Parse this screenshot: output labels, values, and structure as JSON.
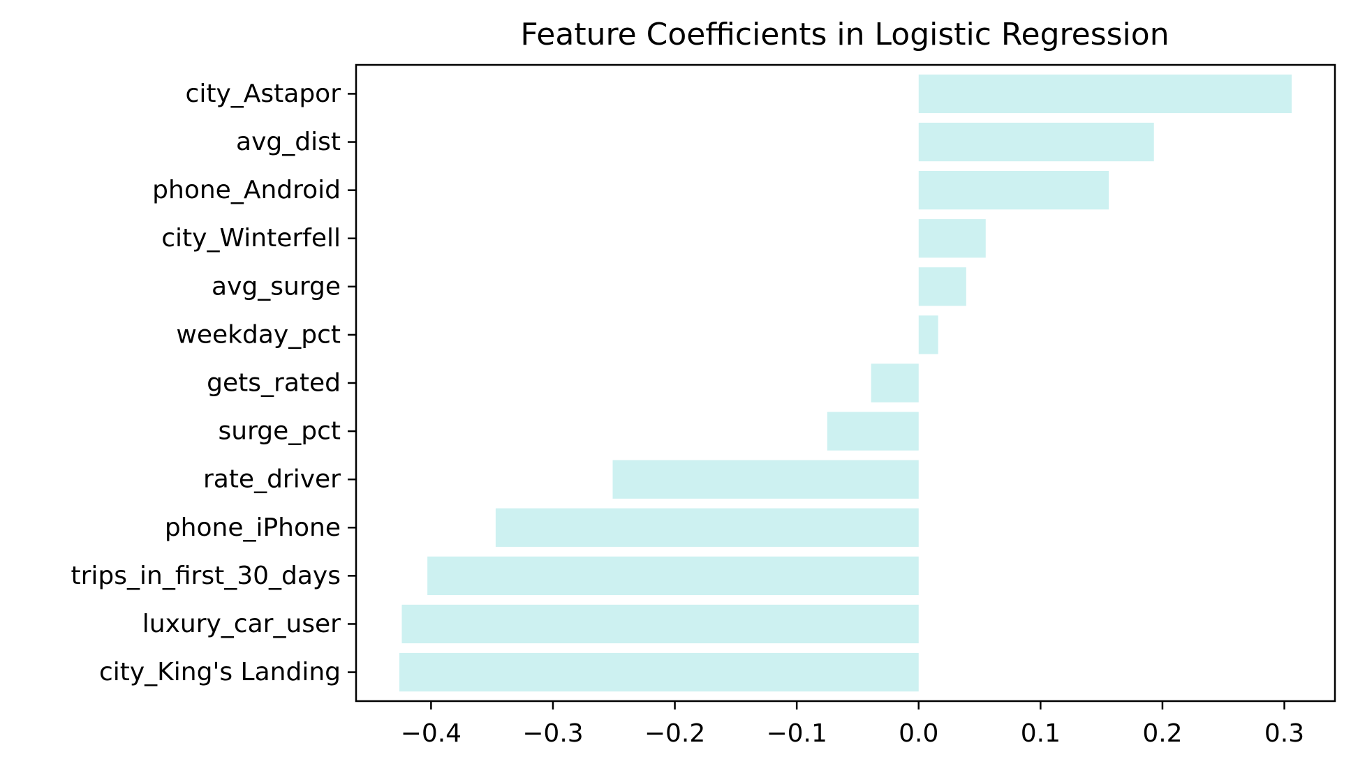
{
  "chart_data": {
    "type": "bar",
    "orientation": "horizontal",
    "title": "Feature Coefficients in Logistic Regression",
    "xlabel": "",
    "ylabel": "",
    "categories": [
      "city_Astapor",
      "avg_dist",
      "phone_Android",
      "city_Winterfell",
      "avg_surge",
      "weekday_pct",
      "gets_rated",
      "surge_pct",
      "rate_driver",
      "phone_iPhone",
      "trips_in_first_30_days",
      "luxury_car_user",
      "city_King's Landing"
    ],
    "values": [
      0.306,
      0.193,
      0.156,
      0.055,
      0.039,
      0.016,
      -0.039,
      -0.075,
      -0.251,
      -0.347,
      -0.403,
      -0.424,
      -0.426
    ],
    "xticks": [
      -0.4,
      -0.3,
      -0.2,
      -0.1,
      0.0,
      0.1,
      0.2,
      0.3
    ],
    "xtick_labels": [
      "−0.4",
      "−0.3",
      "−0.2",
      "−0.1",
      "0.0",
      "0.1",
      "0.2",
      "0.3"
    ],
    "xlim": [
      -0.4615,
      0.3415
    ],
    "grid": false,
    "legend": "none",
    "bar_color": "#cdf1f1",
    "axis_color": "#000000",
    "text_color": "#000000"
  }
}
